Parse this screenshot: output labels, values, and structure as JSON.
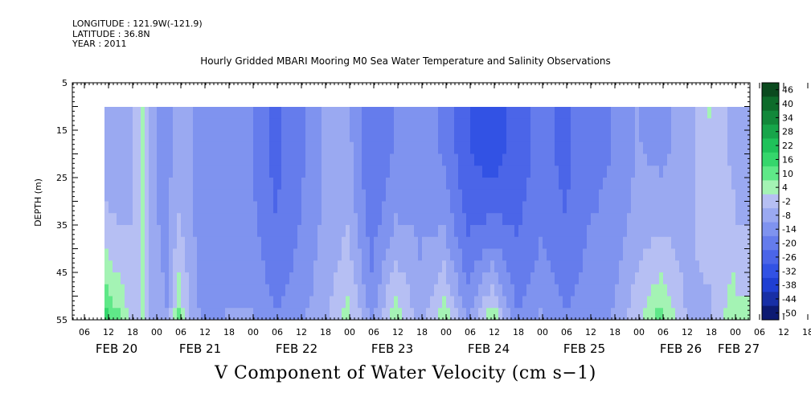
{
  "header": {
    "longitude": "LONGITUDE : 121.9W(-121.9)",
    "latitude": "LATITUDE : 36.8N",
    "year": "YEAR : 2011"
  },
  "title": "Hourly Gridded MBARI Mooring M0 Sea Water Temperature and Salinity Observations",
  "bottom_title": "V Component of Water Velocity (cm s−1)",
  "chart_data": {
    "type": "heatmap",
    "ylabel": "DEPTH (m)",
    "ylim": [
      5,
      55
    ],
    "y_inverted": true,
    "y_ticks": [
      5,
      15,
      25,
      35,
      45,
      55
    ],
    "data_depth_range": [
      10,
      55
    ],
    "x_hour_labels": [
      "06",
      "12",
      "18",
      "00",
      "06",
      "12",
      "18",
      "00",
      "06",
      "12",
      "18",
      "00",
      "06",
      "12",
      "18",
      "00",
      "06",
      "12",
      "18",
      "00",
      "06",
      "12",
      "18",
      "00",
      "06",
      "12",
      "18",
      "00",
      "06",
      "12",
      "18",
      "00"
    ],
    "x_date_labels": [
      "FEB 20",
      "FEB 21",
      "FEB 22",
      "FEB 23",
      "FEB 24",
      "FEB 25",
      "FEB 26",
      "FEB 27"
    ],
    "x_start": "FEB 20 12:00",
    "x_end": "FEB 27 01:00",
    "colorbar_levels": [
      "46",
      "40",
      "34",
      "28",
      "22",
      "16",
      "10",
      "4",
      "-2",
      "-8",
      "-14",
      "-20",
      "-26",
      "-32",
      "-38",
      "-44",
      "-50"
    ],
    "colorbar_colors": [
      "#0a4a1e",
      "#0d6b2a",
      "#12883a",
      "#17a54a",
      "#1fc25a",
      "#35d66c",
      "#5fe888",
      "#a4f3b4",
      "#b6bff3",
      "#9aa9f1",
      "#7f93ef",
      "#657cec",
      "#4b65e8",
      "#3252e4",
      "#1f3fd2",
      "#172fa6",
      "#0c1a72"
    ],
    "bands_hour_offsets": [
      {
        "h": 0,
        "mean": -6,
        "deep": 16
      },
      {
        "h": 3,
        "mean": -8,
        "deep": 10
      },
      {
        "h": 6,
        "mean": -4,
        "deep": 2
      },
      {
        "h": 9,
        "mean": 6,
        "deep": 4
      },
      {
        "h": 12,
        "mean": -8,
        "deep": -6
      },
      {
        "h": 15,
        "mean": -10,
        "deep": -8
      },
      {
        "h": 18,
        "mean": -6,
        "deep": 10
      },
      {
        "h": 21,
        "mean": -8,
        "deep": -4
      },
      {
        "h": 24,
        "mean": -12,
        "deep": -10
      },
      {
        "h": 30,
        "mean": -10,
        "deep": -8
      },
      {
        "h": 36,
        "mean": -14,
        "deep": -8
      },
      {
        "h": 42,
        "mean": -22,
        "deep": -14
      },
      {
        "h": 48,
        "mean": -16,
        "deep": -10
      },
      {
        "h": 54,
        "mean": -8,
        "deep": -4
      },
      {
        "h": 60,
        "mean": -6,
        "deep": 6
      },
      {
        "h": 66,
        "mean": -20,
        "deep": -10
      },
      {
        "h": 72,
        "mean": -14,
        "deep": 8
      },
      {
        "h": 78,
        "mean": -10,
        "deep": -6
      },
      {
        "h": 84,
        "mean": -16,
        "deep": 8
      },
      {
        "h": 90,
        "mean": -26,
        "deep": -10
      },
      {
        "h": 96,
        "mean": -30,
        "deep": 8
      },
      {
        "h": 102,
        "mean": -24,
        "deep": -14
      },
      {
        "h": 108,
        "mean": -18,
        "deep": -8
      },
      {
        "h": 114,
        "mean": -22,
        "deep": -14
      },
      {
        "h": 120,
        "mean": -16,
        "deep": -10
      },
      {
        "h": 126,
        "mean": -14,
        "deep": -8
      },
      {
        "h": 132,
        "mean": -8,
        "deep": 2
      },
      {
        "h": 138,
        "mean": -10,
        "deep": 12
      },
      {
        "h": 144,
        "mean": -6,
        "deep": -2
      },
      {
        "h": 150,
        "mean": 4,
        "deep": -4
      },
      {
        "h": 156,
        "mean": -4,
        "deep": 8
      },
      {
        "h": 157,
        "mean": -6,
        "deep": 6
      }
    ]
  }
}
